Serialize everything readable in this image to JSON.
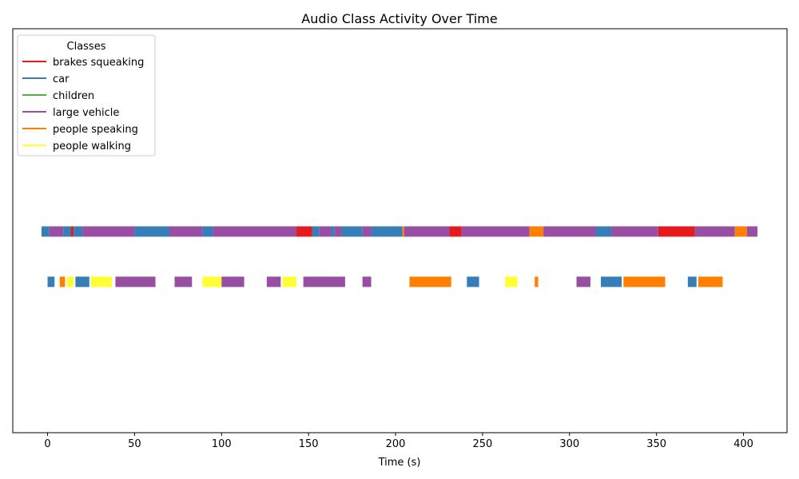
{
  "chart_data": {
    "type": "timeline",
    "title": "Audio Class Activity Over Time",
    "xlabel": "Time (s)",
    "ylabel": "",
    "xlim": [
      -20,
      425
    ],
    "xticks": [
      0,
      50,
      100,
      150,
      200,
      250,
      300,
      350,
      400
    ],
    "grid": false,
    "legend": {
      "title": "Classes",
      "placement": "top-left",
      "entries": [
        {
          "name": "brakes squeaking",
          "color": "#e41a1c"
        },
        {
          "name": "car",
          "color": "#377eb8"
        },
        {
          "name": "children",
          "color": "#4daf4a"
        },
        {
          "name": "large vehicle",
          "color": "#984ea3"
        },
        {
          "name": "people speaking",
          "color": "#ff7f00"
        },
        {
          "name": "people walking",
          "color": "#ffff33"
        }
      ]
    },
    "rows": [
      {
        "segments": [
          {
            "class": "car",
            "start": -3.5,
            "end": 1
          },
          {
            "class": "large vehicle",
            "start": 1,
            "end": 9
          },
          {
            "class": "car",
            "start": 9,
            "end": 14
          },
          {
            "class": "brakes squeaking",
            "start": 13.5,
            "end": 15
          },
          {
            "class": "car",
            "start": 15,
            "end": 20
          },
          {
            "class": "large vehicle",
            "start": 20,
            "end": 50
          },
          {
            "class": "car",
            "start": 50,
            "end": 70
          },
          {
            "class": "large vehicle",
            "start": 70,
            "end": 89
          },
          {
            "class": "car",
            "start": 89,
            "end": 95
          },
          {
            "class": "large vehicle",
            "start": 95,
            "end": 143
          },
          {
            "class": "brakes squeaking",
            "start": 143,
            "end": 152
          },
          {
            "class": "car",
            "start": 152,
            "end": 156
          },
          {
            "class": "large vehicle",
            "start": 156,
            "end": 163
          },
          {
            "class": "car",
            "start": 163,
            "end": 165
          },
          {
            "class": "large vehicle",
            "start": 165,
            "end": 169
          },
          {
            "class": "car",
            "start": 169,
            "end": 181
          },
          {
            "class": "large vehicle",
            "start": 181,
            "end": 186
          },
          {
            "class": "car",
            "start": 186,
            "end": 204
          },
          {
            "class": "people speaking",
            "start": 204,
            "end": 205
          },
          {
            "class": "large vehicle",
            "start": 205,
            "end": 231
          },
          {
            "class": "brakes squeaking",
            "start": 231,
            "end": 238
          },
          {
            "class": "large vehicle",
            "start": 238,
            "end": 277
          },
          {
            "class": "people speaking",
            "start": 277,
            "end": 285
          },
          {
            "class": "large vehicle",
            "start": 285,
            "end": 315
          },
          {
            "class": "car",
            "start": 315,
            "end": 324
          },
          {
            "class": "large vehicle",
            "start": 324,
            "end": 351
          },
          {
            "class": "brakes squeaking",
            "start": 351,
            "end": 372
          },
          {
            "class": "large vehicle",
            "start": 372,
            "end": 395
          },
          {
            "class": "people speaking",
            "start": 395,
            "end": 402
          },
          {
            "class": "large vehicle",
            "start": 402,
            "end": 408
          }
        ]
      },
      {
        "segments": [
          {
            "class": "car",
            "start": 0,
            "end": 4
          },
          {
            "class": "people speaking",
            "start": 7,
            "end": 10
          },
          {
            "class": "people walking",
            "start": 11,
            "end": 15
          },
          {
            "class": "car",
            "start": 16,
            "end": 24
          },
          {
            "class": "people walking",
            "start": 25,
            "end": 37
          },
          {
            "class": "large vehicle",
            "start": 39,
            "end": 62
          },
          {
            "class": "large vehicle",
            "start": 73,
            "end": 83
          },
          {
            "class": "people walking",
            "start": 89,
            "end": 100
          },
          {
            "class": "large vehicle",
            "start": 100,
            "end": 113
          },
          {
            "class": "large vehicle",
            "start": 126,
            "end": 134
          },
          {
            "class": "people walking",
            "start": 135,
            "end": 143
          },
          {
            "class": "large vehicle",
            "start": 147,
            "end": 171
          },
          {
            "class": "large vehicle",
            "start": 181,
            "end": 186
          },
          {
            "class": "people speaking",
            "start": 208,
            "end": 232
          },
          {
            "class": "car",
            "start": 241,
            "end": 248
          },
          {
            "class": "people walking",
            "start": 263,
            "end": 270
          },
          {
            "class": "people speaking",
            "start": 280,
            "end": 282
          },
          {
            "class": "large vehicle",
            "start": 304,
            "end": 312
          },
          {
            "class": "car",
            "start": 318,
            "end": 330
          },
          {
            "class": "people speaking",
            "start": 331,
            "end": 355
          },
          {
            "class": "car",
            "start": 368,
            "end": 373
          },
          {
            "class": "people speaking",
            "start": 374,
            "end": 388
          }
        ]
      }
    ]
  }
}
